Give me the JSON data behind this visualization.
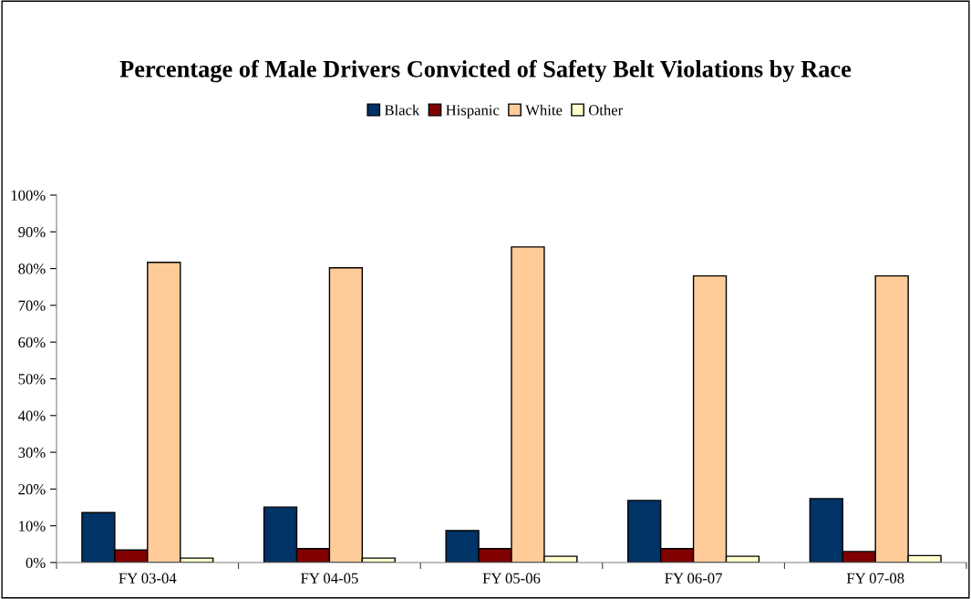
{
  "chart_data": {
    "type": "bar",
    "title": "Percentage of Male Drivers Convicted of Safety Belt Violations by Race",
    "categories": [
      "FY 03-04",
      "FY 04-05",
      "FY 05-06",
      "FY 06-07",
      "FY 07-08"
    ],
    "series": [
      {
        "name": "Black",
        "color": "#003366",
        "values": [
          13.6,
          15.1,
          8.7,
          16.9,
          17.4
        ]
      },
      {
        "name": "Hispanic",
        "color": "#800000",
        "values": [
          3.4,
          3.8,
          3.8,
          3.8,
          3.0
        ]
      },
      {
        "name": "White",
        "color": "#ffcc99",
        "values": [
          81.7,
          80.2,
          85.9,
          78.0,
          78.0
        ]
      },
      {
        "name": "Other",
        "color": "#ffffcc",
        "values": [
          1.2,
          1.2,
          1.7,
          1.7,
          1.9
        ]
      }
    ],
    "ylim": [
      0,
      100
    ],
    "yticks": [
      {
        "value": 0,
        "label": "0%"
      },
      {
        "value": 10,
        "label": "10%"
      },
      {
        "value": 20,
        "label": "20%"
      },
      {
        "value": 30,
        "label": "30%"
      },
      {
        "value": 40,
        "label": "40%"
      },
      {
        "value": 50,
        "label": "50%"
      },
      {
        "value": 60,
        "label": "60%"
      },
      {
        "value": 70,
        "label": "70%"
      },
      {
        "value": 80,
        "label": "80%"
      },
      {
        "value": 90,
        "label": "90%"
      },
      {
        "value": 100,
        "label": "100%"
      }
    ],
    "grid": false,
    "legend": "top"
  }
}
